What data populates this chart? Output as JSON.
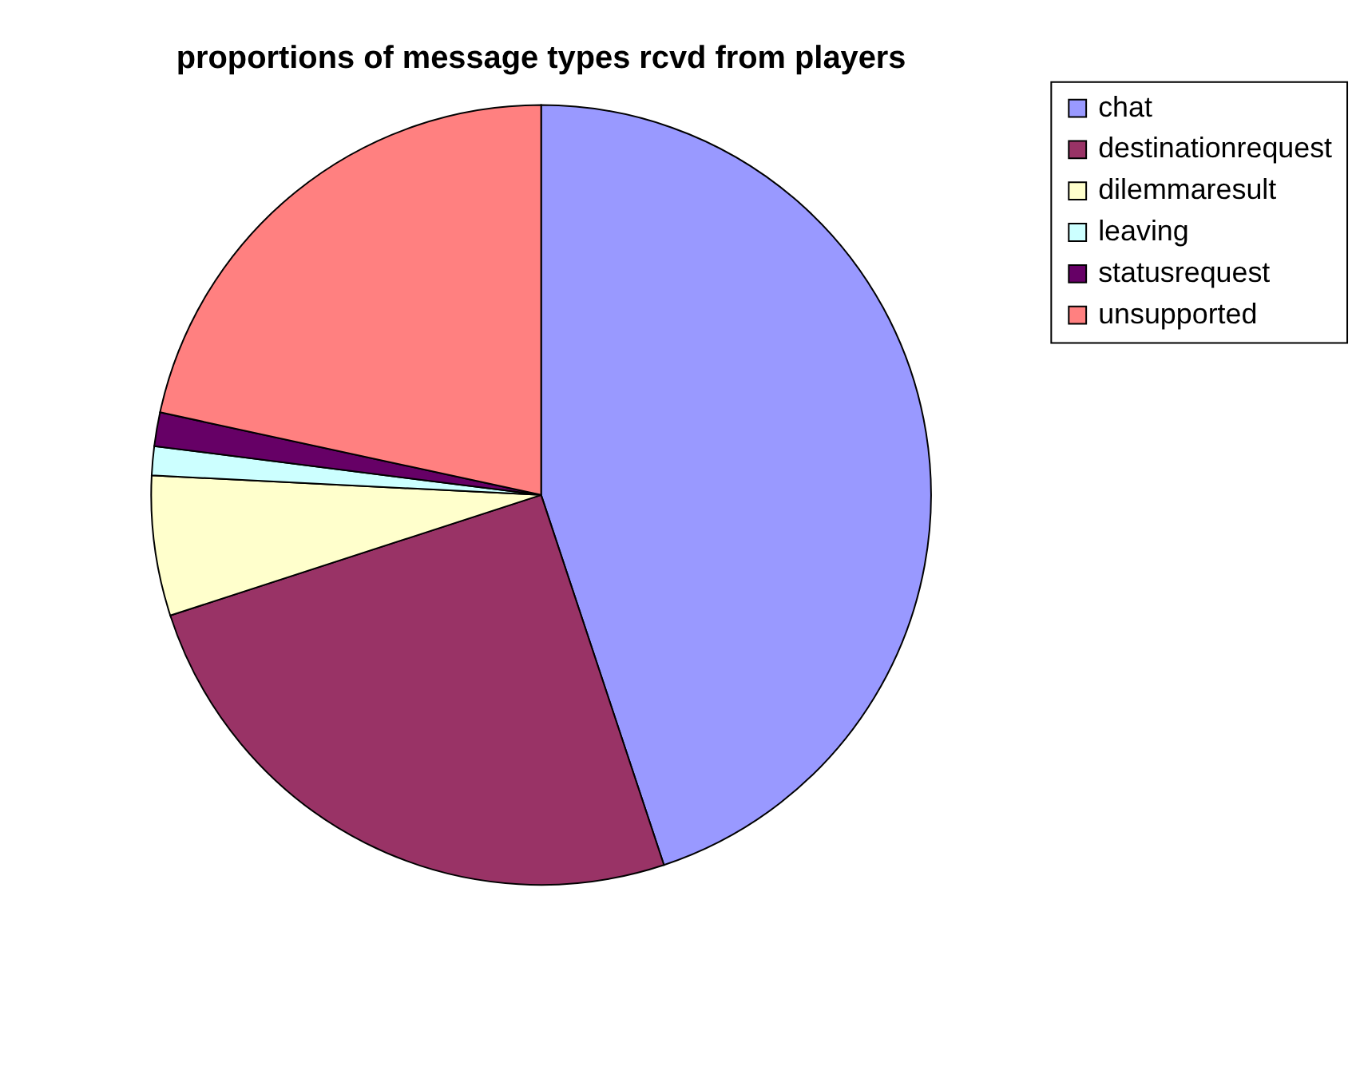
{
  "chart_data": {
    "type": "pie",
    "title": "proportions of message types rcvd from players",
    "categories": [
      "chat",
      "destinationrequest",
      "dilemmaresult",
      "leaving",
      "statusrequest",
      "unsupported"
    ],
    "values": [
      44.9,
      25.1,
      5.8,
      1.2,
      1.4,
      21.6
    ],
    "colors": [
      "#9999ff",
      "#993366",
      "#ffffcc",
      "#ccffff",
      "#660066",
      "#ff8080"
    ],
    "legend": "right"
  }
}
